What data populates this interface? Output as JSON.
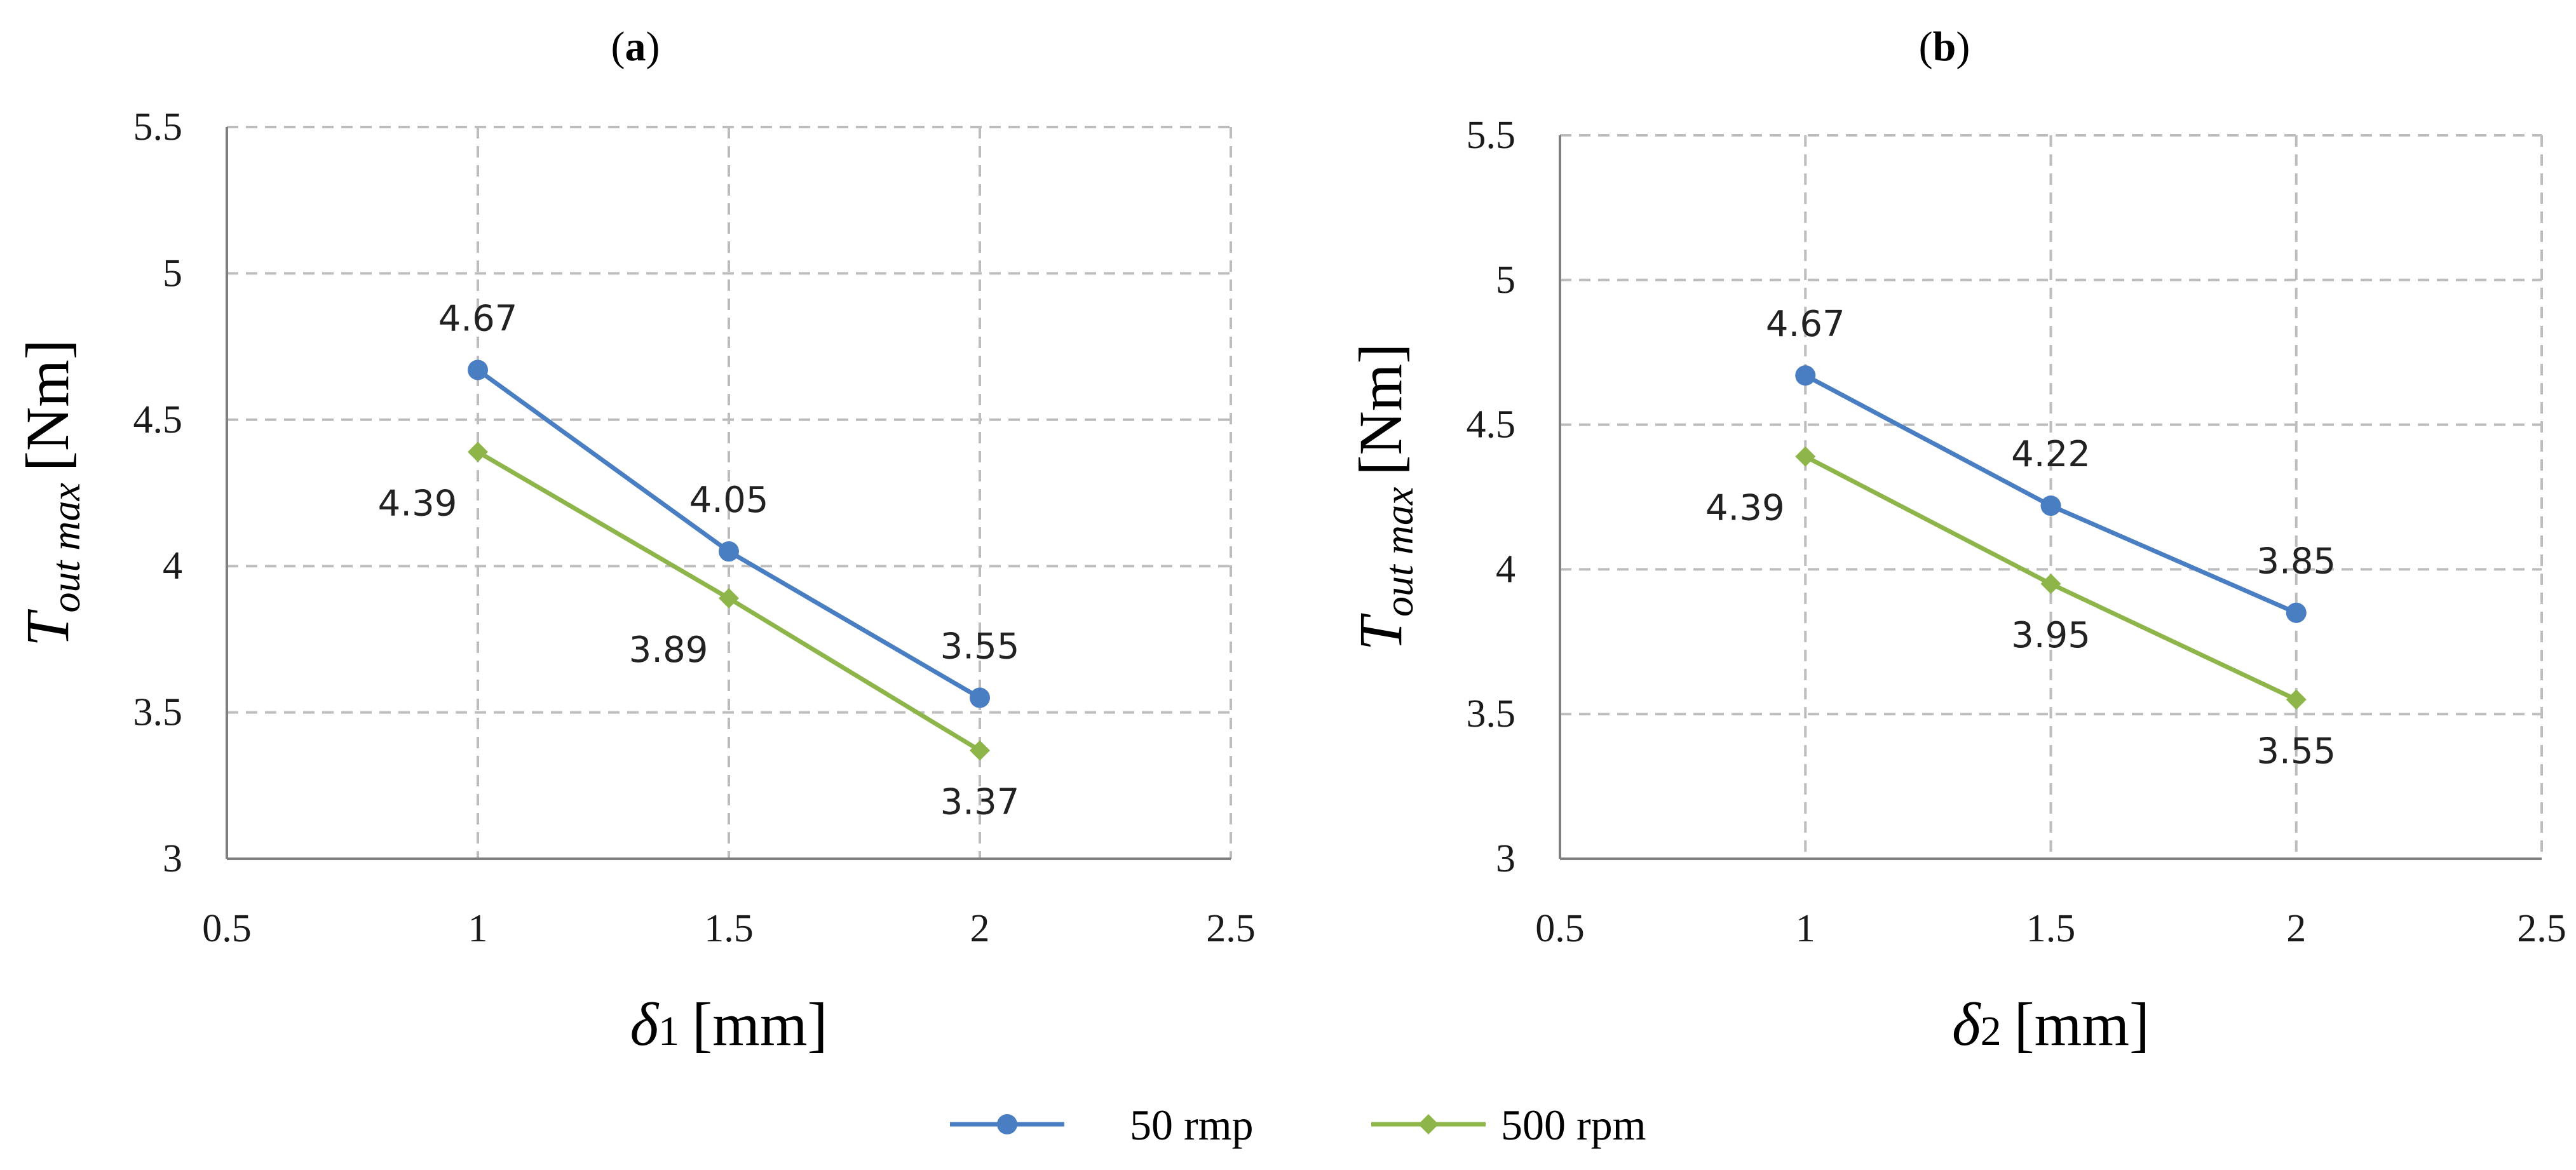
{
  "chart_data": [
    {
      "type": "line",
      "panel_label": "a",
      "xlabel": "δ1 [mm]",
      "xlabel_symbol": "δ",
      "xlabel_subscript": "1",
      "xlabel_unit": "[mm]",
      "ylabel": "Tout max [Nm]",
      "ylabel_symbol": "T",
      "ylabel_subscript": "out max",
      "ylabel_unit": "[Nm]",
      "xlim": [
        0.5,
        2.5
      ],
      "ylim": [
        3,
        5.5
      ],
      "xticks": [
        "0.5",
        "1",
        "1.5",
        "2",
        "2.5"
      ],
      "yticks": [
        "3",
        "3.5",
        "4",
        "4.5",
        "5",
        "5.5"
      ],
      "grid": true,
      "x": [
        1,
        1.5,
        2
      ],
      "series": [
        {
          "name": "50 rmp",
          "values": [
            4.67,
            4.05,
            3.55
          ],
          "labels": [
            "4.67",
            "4.05",
            "3.55"
          ],
          "label_pos": [
            "above",
            "above",
            "above"
          ],
          "color": "#4a7ec2",
          "marker": "circle"
        },
        {
          "name": "500 rpm",
          "values": [
            4.39,
            3.89,
            3.37
          ],
          "labels": [
            "4.39",
            "3.89",
            "3.37"
          ],
          "label_pos": [
            "below-left",
            "below-left",
            "below"
          ],
          "color": "#8db54a",
          "marker": "diamond"
        }
      ]
    },
    {
      "type": "line",
      "panel_label": "b",
      "xlabel": "δ2 [mm]",
      "xlabel_symbol": "δ",
      "xlabel_subscript": "2",
      "xlabel_unit": "[mm]",
      "ylabel": "Tout max [Nm]",
      "ylabel_symbol": "T",
      "ylabel_subscript": "out max",
      "ylabel_unit": "[Nm]",
      "xlim": [
        0.5,
        2.5
      ],
      "ylim": [
        3,
        5.5
      ],
      "xticks": [
        "0.5",
        "1",
        "1.5",
        "2",
        "2.5"
      ],
      "yticks": [
        "3",
        "3.5",
        "4",
        "4.5",
        "5",
        "5.5"
      ],
      "grid": true,
      "x": [
        1,
        1.5,
        2
      ],
      "series": [
        {
          "name": "50 rmp",
          "values": [
            4.67,
            4.22,
            3.85
          ],
          "labels": [
            "4.67",
            "4.22",
            "3.85"
          ],
          "label_pos": [
            "above",
            "above",
            "above"
          ],
          "color": "#4a7ec2",
          "marker": "circle"
        },
        {
          "name": "500 rpm",
          "values": [
            4.39,
            3.95,
            3.55
          ],
          "labels": [
            "4.39",
            "3.95",
            "3.55"
          ],
          "label_pos": [
            "below-left",
            "below",
            "below"
          ],
          "color": "#8db54a",
          "marker": "diamond"
        }
      ]
    }
  ],
  "legend": [
    {
      "name": "50 rmp",
      "color": "#4a7ec2",
      "marker": "circle"
    },
    {
      "name": "500 rpm",
      "color": "#8db54a",
      "marker": "diamond"
    }
  ]
}
